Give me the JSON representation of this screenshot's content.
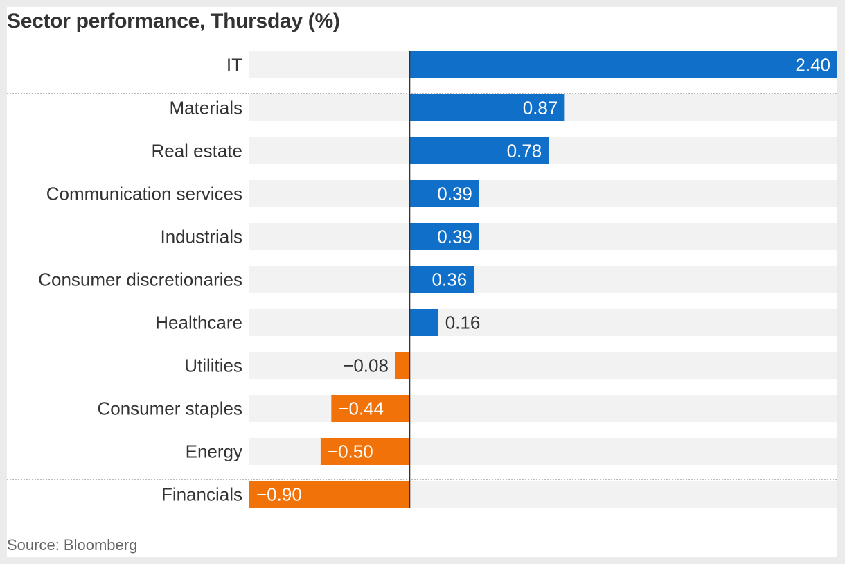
{
  "title": "Sector performance, Thursday (%)",
  "source": "Source: Bloomberg",
  "colors": {
    "positive": "#1070c9",
    "negative": "#f07208",
    "track": "#f2f2f2",
    "axis": "#333333",
    "divider": "#b8b8b8"
  },
  "chart_data": {
    "type": "bar",
    "orientation": "horizontal",
    "title": "Sector performance, Thursday (%)",
    "categories": [
      "IT",
      "Materials",
      "Real estate",
      "Communication services",
      "Industrials",
      "Consumer discretionaries",
      "Healthcare",
      "Utilities",
      "Consumer staples",
      "Energy",
      "Financials"
    ],
    "values": [
      2.4,
      0.87,
      0.78,
      0.39,
      0.39,
      0.36,
      0.16,
      -0.08,
      -0.44,
      -0.5,
      -0.9
    ],
    "value_labels": [
      "2.40",
      "0.87",
      "0.78",
      "0.39",
      "0.39",
      "0.36",
      "0.16",
      "−0.08",
      "−0.44",
      "−0.50",
      "−0.90"
    ],
    "xlim": [
      -0.9,
      2.4
    ],
    "grid": false,
    "legend": false
  }
}
